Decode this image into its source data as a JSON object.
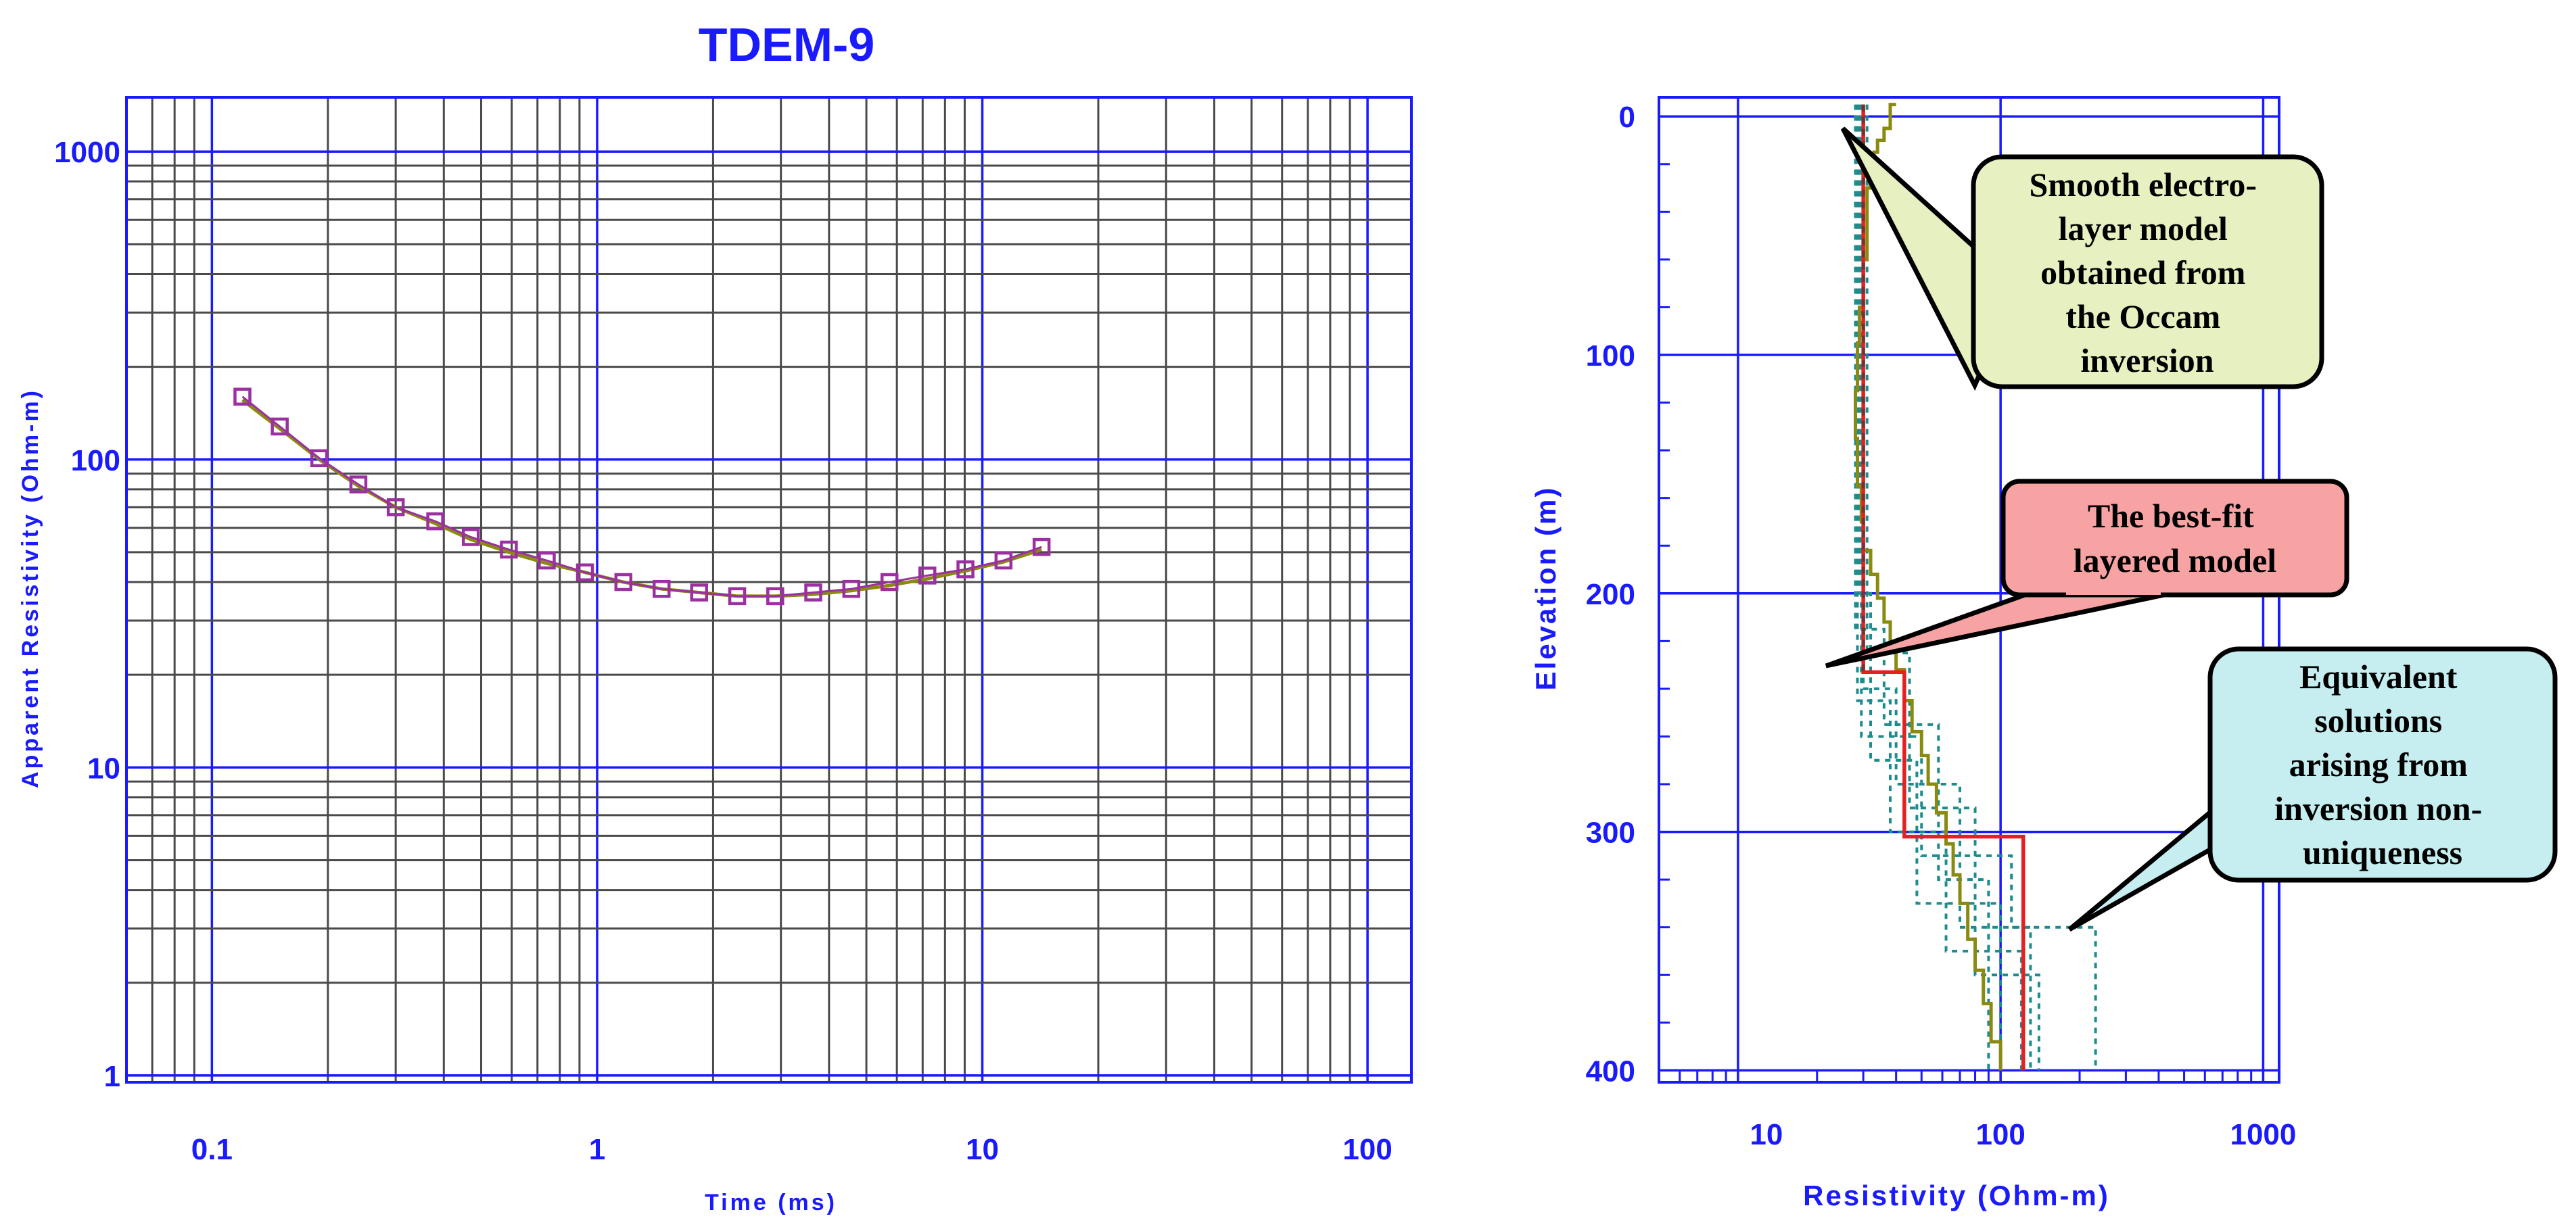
{
  "chart_data": [
    {
      "type": "scatter",
      "title": "TDEM-9",
      "xlabel": "Time (ms)",
      "ylabel": "Apparent Resistivity (Ohm-m)",
      "x_scale": "log",
      "y_scale": "log",
      "xlim": [
        0.06,
        130
      ],
      "ylim": [
        0.95,
        1500
      ],
      "x_tick_labels": [
        "0.1",
        "1",
        "10",
        "100"
      ],
      "y_tick_labels": [
        "1000",
        "100",
        "10",
        "1"
      ],
      "grid": true,
      "series": [
        {
          "kind": "observed",
          "marker": "square",
          "color": "#9b30a0",
          "x": [
            0.12,
            0.15,
            0.19,
            0.24,
            0.3,
            0.38,
            0.47,
            0.59,
            0.74,
            0.93,
            1.17,
            1.47,
            1.84,
            2.31,
            2.9,
            3.64,
            4.57,
            5.74,
            7.2,
            9.04,
            11.35,
            14.25
          ],
          "y": [
            160,
            128,
            101,
            83,
            70,
            63,
            56,
            51,
            47,
            43,
            40,
            38,
            37,
            36,
            36,
            37,
            38,
            40,
            42,
            44,
            47,
            52
          ]
        },
        {
          "kind": "model-fit",
          "color": "#8a8a10",
          "x": [
            0.12,
            0.15,
            0.19,
            0.24,
            0.3,
            0.38,
            0.47,
            0.59,
            0.74,
            0.93,
            1.17,
            1.47,
            1.84,
            2.31,
            2.9,
            3.64,
            4.57,
            5.74,
            7.2,
            9.04,
            11.35,
            14.25
          ],
          "y": [
            156,
            126,
            100,
            82,
            70,
            62,
            55,
            50,
            46,
            43,
            40,
            38,
            37,
            36,
            36,
            36.5,
            37.5,
            39,
            41,
            43.5,
            46.5,
            51
          ]
        }
      ]
    },
    {
      "type": "line",
      "xlabel": "Resistivity (Ohm-m)",
      "ylabel": "Elevation (m)",
      "x_scale": "log",
      "xlim": [
        5,
        1150
      ],
      "ylim": [
        -8,
        405
      ],
      "y_inverted": true,
      "x_tick_labels": [
        "10",
        "100",
        "1000"
      ],
      "y_tick_labels": [
        "0",
        "100",
        "200",
        "300",
        "400"
      ],
      "grid": true,
      "series": [
        {
          "name": "Smooth electro-layer model obtained from the Occam inversion",
          "color": "#8a8a10",
          "style": "solid",
          "steps": [
            [
              40,
              -5
            ],
            [
              38,
              5
            ],
            [
              36,
              10
            ],
            [
              34,
              15
            ],
            [
              33,
              22
            ],
            [
              32,
              30
            ],
            [
              31,
              45
            ],
            [
              31,
              60
            ],
            [
              30,
              80
            ],
            [
              29,
              95
            ],
            [
              28.5,
              115
            ],
            [
              28,
              135
            ],
            [
              28.5,
              155
            ],
            [
              29.5,
              170
            ],
            [
              30,
              182
            ],
            [
              32,
              192
            ],
            [
              34,
              202
            ],
            [
              36,
              212
            ],
            [
              38,
              222
            ],
            [
              40,
              232
            ],
            [
              43,
              245
            ],
            [
              46,
              258
            ],
            [
              50,
              268
            ],
            [
              53,
              280
            ],
            [
              57,
              292
            ],
            [
              62,
              305
            ],
            [
              66,
              318
            ],
            [
              70,
              330
            ],
            [
              75,
              345
            ],
            [
              80,
              358
            ],
            [
              86,
              372
            ],
            [
              92,
              388
            ],
            [
              100,
              400
            ]
          ]
        },
        {
          "name": "The best-fit layered model",
          "color": "#e62020",
          "style": "solid",
          "steps": [
            [
              30,
              -5
            ],
            [
              30,
              233
            ],
            [
              43,
              233
            ],
            [
              43,
              302
            ],
            [
              122,
              302
            ],
            [
              122,
              400
            ]
          ]
        },
        {
          "name": "Equivalent solutions arising from inversion non-uniqueness",
          "color": "#1e8c8c",
          "style": "dotted",
          "steps_set": [
            [
              [
                29,
                -5
              ],
              [
                29,
                200
              ],
              [
                32,
                200
              ],
              [
                32,
                270
              ],
              [
                48,
                270
              ],
              [
                48,
                330
              ],
              [
                100,
                330
              ],
              [
                100,
                400
              ]
            ],
            [
              [
                30,
                -5
              ],
              [
                30,
                240
              ],
              [
                40,
                240
              ],
              [
                40,
                280
              ],
              [
                70,
                280
              ],
              [
                70,
                340
              ],
              [
                130,
                340
              ],
              [
                130,
                400
              ]
            ],
            [
              [
                28,
                -5
              ],
              [
                28,
                215
              ],
              [
                36,
                215
              ],
              [
                36,
                255
              ],
              [
                58,
                255
              ],
              [
                58,
                320
              ],
              [
                90,
                320
              ],
              [
                90,
                400
              ]
            ],
            [
              [
                31,
                -5
              ],
              [
                31,
                225
              ],
              [
                45,
                225
              ],
              [
                45,
                290
              ],
              [
                80,
                290
              ],
              [
                80,
                360
              ],
              [
                140,
                360
              ],
              [
                140,
                400
              ]
            ],
            [
              [
                29.5,
                -5
              ],
              [
                29.5,
                260
              ],
              [
                50,
                260
              ],
              [
                50,
                310
              ],
              [
                110,
                310
              ],
              [
                110,
                340
              ],
              [
                230,
                340
              ],
              [
                230,
                400
              ]
            ],
            [
              [
                28.5,
                -5
              ],
              [
                28.5,
                245
              ],
              [
                38,
                245
              ],
              [
                38,
                300
              ],
              [
                62,
                300
              ],
              [
                62,
                350
              ],
              [
                120,
                350
              ],
              [
                120,
                400
              ]
            ]
          ]
        }
      ],
      "annotations": [
        "Smooth electro-layer model obtained from the Occam inversion",
        "The best-fit layered model",
        "Equivalent solutions arising from inversion non-uniqueness"
      ],
      "colors": {
        "callout_smooth": "#e6f0c0",
        "callout_bestfit": "#f7a3a3",
        "callout_equivalent": "#c6eef0"
      }
    }
  ],
  "callouts": {
    "smooth_lines": [
      "Smooth electro-",
      "layer model",
      "obtained from",
      "the Occam",
      "inversion"
    ],
    "bestfit_lines": [
      "The best-fit",
      "layered model"
    ],
    "equivalent_lines": [
      "Equivalent",
      "solutions",
      "arising from",
      "inversion non-",
      "uniqueness"
    ]
  }
}
